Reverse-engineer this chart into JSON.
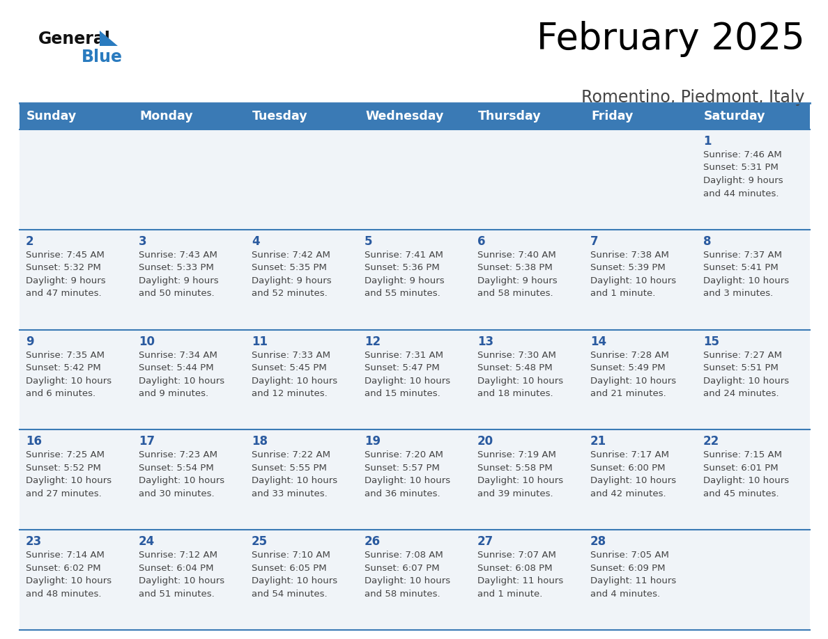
{
  "title": "February 2025",
  "subtitle": "Romentino, Piedmont, Italy",
  "days_of_week": [
    "Sunday",
    "Monday",
    "Tuesday",
    "Wednesday",
    "Thursday",
    "Friday",
    "Saturday"
  ],
  "header_bg": "#3a7ab5",
  "header_text": "#ffffff",
  "cell_bg": "#f0f4f8",
  "day_number_color": "#2a5a9f",
  "cell_text_color": "#444444",
  "grid_line_color": "#3a7ab5",
  "title_color": "#000000",
  "subtitle_color": "#444444",
  "logo_general_color": "#111111",
  "logo_blue_color": "#2a7bbf",
  "weeks": [
    {
      "days": [
        {
          "day": null,
          "info": null
        },
        {
          "day": null,
          "info": null
        },
        {
          "day": null,
          "info": null
        },
        {
          "day": null,
          "info": null
        },
        {
          "day": null,
          "info": null
        },
        {
          "day": null,
          "info": null
        },
        {
          "day": 1,
          "info": "Sunrise: 7:46 AM\nSunset: 5:31 PM\nDaylight: 9 hours\nand 44 minutes."
        }
      ]
    },
    {
      "days": [
        {
          "day": 2,
          "info": "Sunrise: 7:45 AM\nSunset: 5:32 PM\nDaylight: 9 hours\nand 47 minutes."
        },
        {
          "day": 3,
          "info": "Sunrise: 7:43 AM\nSunset: 5:33 PM\nDaylight: 9 hours\nand 50 minutes."
        },
        {
          "day": 4,
          "info": "Sunrise: 7:42 AM\nSunset: 5:35 PM\nDaylight: 9 hours\nand 52 minutes."
        },
        {
          "day": 5,
          "info": "Sunrise: 7:41 AM\nSunset: 5:36 PM\nDaylight: 9 hours\nand 55 minutes."
        },
        {
          "day": 6,
          "info": "Sunrise: 7:40 AM\nSunset: 5:38 PM\nDaylight: 9 hours\nand 58 minutes."
        },
        {
          "day": 7,
          "info": "Sunrise: 7:38 AM\nSunset: 5:39 PM\nDaylight: 10 hours\nand 1 minute."
        },
        {
          "day": 8,
          "info": "Sunrise: 7:37 AM\nSunset: 5:41 PM\nDaylight: 10 hours\nand 3 minutes."
        }
      ]
    },
    {
      "days": [
        {
          "day": 9,
          "info": "Sunrise: 7:35 AM\nSunset: 5:42 PM\nDaylight: 10 hours\nand 6 minutes."
        },
        {
          "day": 10,
          "info": "Sunrise: 7:34 AM\nSunset: 5:44 PM\nDaylight: 10 hours\nand 9 minutes."
        },
        {
          "day": 11,
          "info": "Sunrise: 7:33 AM\nSunset: 5:45 PM\nDaylight: 10 hours\nand 12 minutes."
        },
        {
          "day": 12,
          "info": "Sunrise: 7:31 AM\nSunset: 5:47 PM\nDaylight: 10 hours\nand 15 minutes."
        },
        {
          "day": 13,
          "info": "Sunrise: 7:30 AM\nSunset: 5:48 PM\nDaylight: 10 hours\nand 18 minutes."
        },
        {
          "day": 14,
          "info": "Sunrise: 7:28 AM\nSunset: 5:49 PM\nDaylight: 10 hours\nand 21 minutes."
        },
        {
          "day": 15,
          "info": "Sunrise: 7:27 AM\nSunset: 5:51 PM\nDaylight: 10 hours\nand 24 minutes."
        }
      ]
    },
    {
      "days": [
        {
          "day": 16,
          "info": "Sunrise: 7:25 AM\nSunset: 5:52 PM\nDaylight: 10 hours\nand 27 minutes."
        },
        {
          "day": 17,
          "info": "Sunrise: 7:23 AM\nSunset: 5:54 PM\nDaylight: 10 hours\nand 30 minutes."
        },
        {
          "day": 18,
          "info": "Sunrise: 7:22 AM\nSunset: 5:55 PM\nDaylight: 10 hours\nand 33 minutes."
        },
        {
          "day": 19,
          "info": "Sunrise: 7:20 AM\nSunset: 5:57 PM\nDaylight: 10 hours\nand 36 minutes."
        },
        {
          "day": 20,
          "info": "Sunrise: 7:19 AM\nSunset: 5:58 PM\nDaylight: 10 hours\nand 39 minutes."
        },
        {
          "day": 21,
          "info": "Sunrise: 7:17 AM\nSunset: 6:00 PM\nDaylight: 10 hours\nand 42 minutes."
        },
        {
          "day": 22,
          "info": "Sunrise: 7:15 AM\nSunset: 6:01 PM\nDaylight: 10 hours\nand 45 minutes."
        }
      ]
    },
    {
      "days": [
        {
          "day": 23,
          "info": "Sunrise: 7:14 AM\nSunset: 6:02 PM\nDaylight: 10 hours\nand 48 minutes."
        },
        {
          "day": 24,
          "info": "Sunrise: 7:12 AM\nSunset: 6:04 PM\nDaylight: 10 hours\nand 51 minutes."
        },
        {
          "day": 25,
          "info": "Sunrise: 7:10 AM\nSunset: 6:05 PM\nDaylight: 10 hours\nand 54 minutes."
        },
        {
          "day": 26,
          "info": "Sunrise: 7:08 AM\nSunset: 6:07 PM\nDaylight: 10 hours\nand 58 minutes."
        },
        {
          "day": 27,
          "info": "Sunrise: 7:07 AM\nSunset: 6:08 PM\nDaylight: 11 hours\nand 1 minute."
        },
        {
          "day": 28,
          "info": "Sunrise: 7:05 AM\nSunset: 6:09 PM\nDaylight: 11 hours\nand 4 minutes."
        },
        {
          "day": null,
          "info": null
        }
      ]
    }
  ]
}
